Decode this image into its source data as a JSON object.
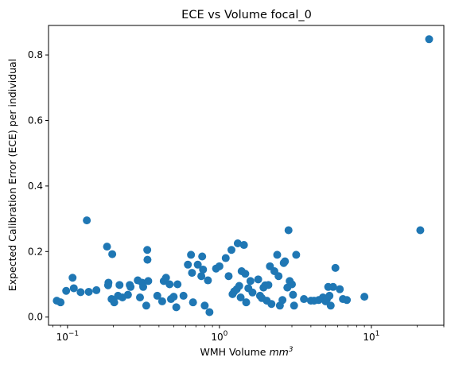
{
  "chart_data": {
    "type": "scatter",
    "title": "ECE vs Volume focal_0",
    "xlabel_main": "WMH Volume ",
    "xlabel_unit": "mm",
    "xlabel_exp": "3",
    "ylabel": "Expected Calibration Error (ECE) per individual",
    "xscale": "log",
    "xlim": [
      0.075,
      30
    ],
    "ylim": [
      -0.025,
      0.89
    ],
    "x_major_ticks": [
      {
        "value": 0.1,
        "base": "10",
        "exp": "−1"
      },
      {
        "value": 1,
        "base": "10",
        "exp": "0"
      },
      {
        "value": 10,
        "base": "10",
        "exp": "1"
      }
    ],
    "y_ticks": [
      {
        "value": 0.0,
        "label": "0.0"
      },
      {
        "value": 0.2,
        "label": "0.2"
      },
      {
        "value": 0.4,
        "label": "0.4"
      },
      {
        "value": 0.6,
        "label": "0.6"
      },
      {
        "value": 0.8,
        "label": "0.8"
      }
    ],
    "grid": false,
    "marker_color": "#1f77b4",
    "points": [
      [
        0.085,
        0.05
      ],
      [
        0.09,
        0.045
      ],
      [
        0.098,
        0.08
      ],
      [
        0.108,
        0.12
      ],
      [
        0.11,
        0.088
      ],
      [
        0.122,
        0.076
      ],
      [
        0.134,
        0.295
      ],
      [
        0.138,
        0.077
      ],
      [
        0.155,
        0.082
      ],
      [
        0.182,
        0.215
      ],
      [
        0.185,
        0.097
      ],
      [
        0.186,
        0.105
      ],
      [
        0.195,
        0.055
      ],
      [
        0.197,
        0.192
      ],
      [
        0.203,
        0.045
      ],
      [
        0.215,
        0.065
      ],
      [
        0.22,
        0.098
      ],
      [
        0.23,
        0.06
      ],
      [
        0.25,
        0.068
      ],
      [
        0.257,
        0.098
      ],
      [
        0.26,
        0.092
      ],
      [
        0.29,
        0.112
      ],
      [
        0.3,
        0.06
      ],
      [
        0.31,
        0.105
      ],
      [
        0.315,
        0.092
      ],
      [
        0.33,
        0.035
      ],
      [
        0.335,
        0.205
      ],
      [
        0.336,
        0.175
      ],
      [
        0.34,
        0.11
      ],
      [
        0.39,
        0.065
      ],
      [
        0.42,
        0.048
      ],
      [
        0.43,
        0.11
      ],
      [
        0.445,
        0.12
      ],
      [
        0.47,
        0.1
      ],
      [
        0.48,
        0.055
      ],
      [
        0.5,
        0.062
      ],
      [
        0.52,
        0.03
      ],
      [
        0.53,
        0.1
      ],
      [
        0.58,
        0.065
      ],
      [
        0.62,
        0.16
      ],
      [
        0.65,
        0.19
      ],
      [
        0.66,
        0.135
      ],
      [
        0.67,
        0.045
      ],
      [
        0.72,
        0.16
      ],
      [
        0.76,
        0.125
      ],
      [
        0.77,
        0.185
      ],
      [
        0.78,
        0.145
      ],
      [
        0.8,
        0.035
      ],
      [
        0.84,
        0.112
      ],
      [
        0.86,
        0.015
      ],
      [
        0.95,
        0.148
      ],
      [
        1.0,
        0.155
      ],
      [
        1.1,
        0.18
      ],
      [
        1.15,
        0.125
      ],
      [
        1.2,
        0.205
      ],
      [
        1.22,
        0.07
      ],
      [
        1.25,
        0.078
      ],
      [
        1.3,
        0.085
      ],
      [
        1.32,
        0.225
      ],
      [
        1.35,
        0.095
      ],
      [
        1.38,
        0.06
      ],
      [
        1.4,
        0.14
      ],
      [
        1.45,
        0.22
      ],
      [
        1.48,
        0.132
      ],
      [
        1.5,
        0.045
      ],
      [
        1.55,
        0.088
      ],
      [
        1.6,
        0.11
      ],
      [
        1.65,
        0.075
      ],
      [
        1.8,
        0.115
      ],
      [
        1.85,
        0.065
      ],
      [
        1.9,
        0.058
      ],
      [
        1.95,
        0.09
      ],
      [
        2.0,
        0.097
      ],
      [
        2.05,
        0.05
      ],
      [
        2.1,
        0.098
      ],
      [
        2.15,
        0.155
      ],
      [
        2.2,
        0.04
      ],
      [
        2.3,
        0.14
      ],
      [
        2.4,
        0.19
      ],
      [
        2.45,
        0.125
      ],
      [
        2.5,
        0.035
      ],
      [
        2.6,
        0.052
      ],
      [
        2.65,
        0.165
      ],
      [
        2.7,
        0.17
      ],
      [
        2.8,
        0.09
      ],
      [
        2.85,
        0.265
      ],
      [
        2.9,
        0.11
      ],
      [
        3.0,
        0.1
      ],
      [
        3.05,
        0.068
      ],
      [
        3.1,
        0.035
      ],
      [
        3.2,
        0.19
      ],
      [
        3.6,
        0.055
      ],
      [
        4.0,
        0.05
      ],
      [
        4.2,
        0.05
      ],
      [
        4.5,
        0.052
      ],
      [
        4.8,
        0.06
      ],
      [
        5.0,
        0.048
      ],
      [
        5.1,
        0.055
      ],
      [
        5.2,
        0.092
      ],
      [
        5.3,
        0.065
      ],
      [
        5.4,
        0.035
      ],
      [
        5.6,
        0.092
      ],
      [
        5.8,
        0.15
      ],
      [
        6.2,
        0.085
      ],
      [
        6.5,
        0.055
      ],
      [
        6.9,
        0.052
      ],
      [
        9.0,
        0.062
      ],
      [
        21.0,
        0.265
      ],
      [
        24.0,
        0.848
      ]
    ]
  }
}
